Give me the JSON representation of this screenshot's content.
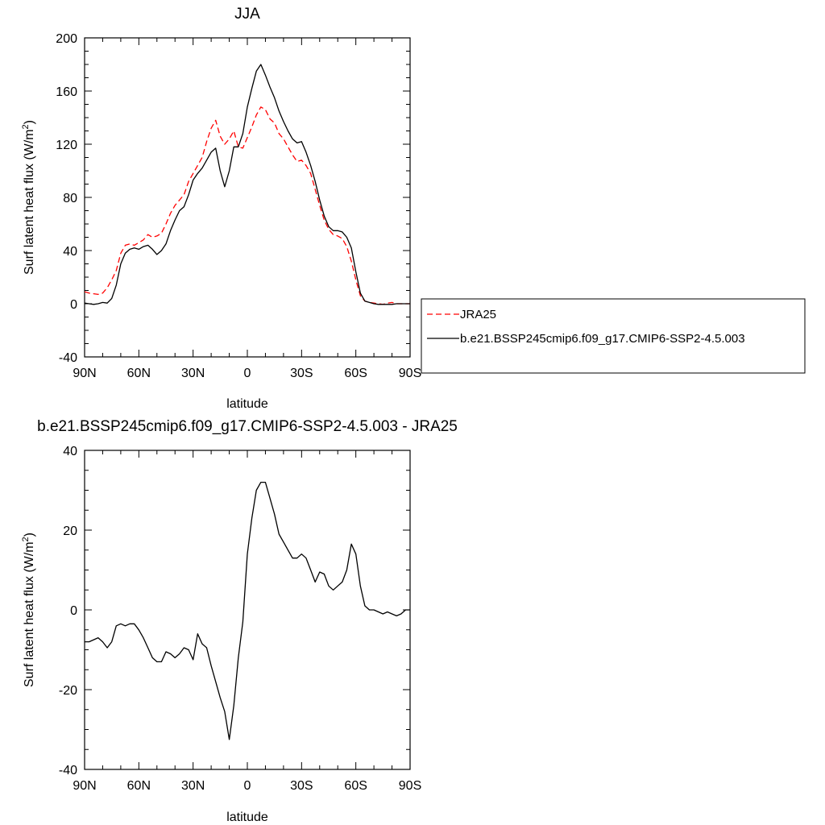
{
  "chart_data": [
    {
      "type": "line",
      "title": "JJA",
      "xlabel": "latitude",
      "ylabel": "Surf latent heat flux (W/m",
      "ylabel_sup": "2",
      "ylabel_close": ")",
      "xlim": [
        90,
        -90
      ],
      "ylim": [
        -40,
        200
      ],
      "xticks": [
        90,
        60,
        30,
        0,
        -30,
        -60,
        -90
      ],
      "xtick_labels": [
        "90N",
        "60N",
        "30N",
        "0",
        "30S",
        "60S",
        "90S"
      ],
      "yticks": [
        -40,
        0,
        40,
        80,
        120,
        160,
        200
      ],
      "ytick_labels": [
        "-40",
        "0",
        "40",
        "80",
        "120",
        "160",
        "200"
      ],
      "grid": false,
      "legend_placement": "right",
      "series": [
        {
          "name": "JRA25",
          "color": "#ff0000",
          "style": "dashed",
          "x": [
            90,
            87.5,
            85,
            82.5,
            80,
            77.5,
            75,
            72.5,
            70,
            67.5,
            65,
            62.5,
            60,
            57.5,
            55,
            52.5,
            50,
            47.5,
            45,
            42.5,
            40,
            37.5,
            35,
            32.5,
            30,
            27.5,
            25,
            22.5,
            20,
            17.5,
            15,
            12.5,
            10,
            7.5,
            5,
            2.5,
            0,
            -2.5,
            -5,
            -7.5,
            -10,
            -12.5,
            -15,
            -17.5,
            -20,
            -22.5,
            -25,
            -27.5,
            -30,
            -32.5,
            -35,
            -37.5,
            -40,
            -42.5,
            -45,
            -47.5,
            -50,
            -52.5,
            -55,
            -57.5,
            -60,
            -62.5,
            -65,
            -67.5,
            -70,
            -72.5,
            -75,
            -77.5,
            -80,
            -82.5,
            -85,
            -87.5,
            -90
          ],
          "y": [
            9,
            8,
            7.5,
            7,
            8,
            12,
            18,
            25,
            38,
            44,
            45,
            44,
            46,
            48,
            52,
            50,
            51,
            53,
            60,
            68,
            74,
            78,
            82,
            92,
            98,
            104,
            110,
            122,
            132,
            138,
            126,
            120,
            124,
            130,
            118,
            117,
            125,
            133,
            142,
            148,
            146,
            139,
            136,
            128,
            124,
            118,
            112,
            107,
            108,
            104,
            98,
            86,
            74,
            63,
            56,
            52,
            51,
            49,
            43,
            32,
            18,
            6,
            2,
            1,
            0.5,
            0,
            -0.5,
            0.5,
            1,
            0,
            0,
            0,
            0
          ]
        },
        {
          "name": "b.e21.BSSP245cmip6.f09_g17.CMIP6-SSP2-4.5.003",
          "color": "#000000",
          "style": "solid",
          "x": [
            90,
            87.5,
            85,
            82.5,
            80,
            77.5,
            75,
            72.5,
            70,
            67.5,
            65,
            62.5,
            60,
            57.5,
            55,
            52.5,
            50,
            47.5,
            45,
            42.5,
            40,
            37.5,
            35,
            32.5,
            30,
            27.5,
            25,
            22.5,
            20,
            17.5,
            15,
            12.5,
            10,
            7.5,
            5,
            2.5,
            0,
            -2.5,
            -5,
            -7.5,
            -10,
            -12.5,
            -15,
            -17.5,
            -20,
            -22.5,
            -25,
            -27.5,
            -30,
            -32.5,
            -35,
            -37.5,
            -40,
            -42.5,
            -45,
            -47.5,
            -50,
            -52.5,
            -55,
            -57.5,
            -60,
            -62.5,
            -65,
            -67.5,
            -70,
            -72.5,
            -75,
            -77.5,
            -80,
            -82.5,
            -85,
            -87.5,
            -90
          ],
          "y": [
            0.5,
            0,
            -0.5,
            0,
            1,
            0.5,
            4,
            14,
            30,
            38,
            41,
            42,
            41,
            43,
            44,
            41,
            37,
            40,
            45,
            55,
            63,
            70,
            73,
            82,
            93,
            98,
            102,
            108,
            114,
            117,
            100,
            88,
            100,
            118,
            118,
            128,
            148,
            162,
            175,
            180,
            172,
            163,
            155,
            145,
            137,
            130,
            124,
            121,
            122,
            114,
            104,
            92,
            78,
            66,
            58,
            55,
            55,
            54,
            50,
            42,
            24,
            8,
            2,
            1,
            0,
            -0.5,
            -0.5,
            -0.5,
            -0.5,
            0,
            0,
            0,
            0
          ]
        }
      ]
    },
    {
      "type": "line",
      "title": "b.e21.BSSP245cmip6.f09_g17.CMIP6-SSP2-4.5.003 - JRA25",
      "xlabel": "latitude",
      "ylabel": "Surf latent heat flux (W/m",
      "ylabel_sup": "2",
      "ylabel_close": ")",
      "xlim": [
        90,
        -90
      ],
      "ylim": [
        -40,
        40
      ],
      "xticks": [
        90,
        60,
        30,
        0,
        -30,
        -60,
        -90
      ],
      "xtick_labels": [
        "90N",
        "60N",
        "30N",
        "0",
        "30S",
        "60S",
        "90S"
      ],
      "yticks": [
        -40,
        -20,
        0,
        20,
        40
      ],
      "ytick_labels": [
        "-40",
        "-20",
        "0",
        "20",
        "40"
      ],
      "grid": false,
      "series": [
        {
          "color": "#000000",
          "style": "solid",
          "x": [
            90,
            87.5,
            85,
            82.5,
            80,
            77.5,
            75,
            72.5,
            70,
            67.5,
            65,
            62.5,
            60,
            57.5,
            55,
            52.5,
            50,
            47.5,
            45,
            42.5,
            40,
            37.5,
            35,
            32.5,
            30,
            27.5,
            25,
            22.5,
            20,
            17.5,
            15,
            12.5,
            10,
            7.5,
            5,
            2.5,
            0,
            -2.5,
            -5,
            -7.5,
            -10,
            -12.5,
            -15,
            -17.5,
            -20,
            -22.5,
            -25,
            -27.5,
            -30,
            -32.5,
            -35,
            -37.5,
            -40,
            -42.5,
            -45,
            -47.5,
            -50,
            -52.5,
            -55,
            -57.5,
            -60,
            -62.5,
            -65,
            -67.5,
            -70,
            -72.5,
            -75,
            -77.5,
            -80,
            -82.5,
            -85,
            -87.5,
            -90
          ],
          "y": [
            -8,
            -8,
            -7.5,
            -7,
            -8,
            -9.5,
            -8,
            -4,
            -3.5,
            -4,
            -3.5,
            -3.5,
            -5,
            -7,
            -9.5,
            -12,
            -13,
            -13,
            -10.5,
            -11,
            -12,
            -11,
            -9.5,
            -10,
            -12.5,
            -6,
            -8.5,
            -9.5,
            -14,
            -18,
            -22,
            -25.5,
            -32.5,
            -24,
            -12,
            -3,
            14,
            23,
            30,
            32,
            32,
            28,
            24,
            19,
            17,
            15,
            13,
            13,
            14,
            13,
            10,
            7,
            9.5,
            9,
            6,
            5,
            6,
            7,
            10,
            16.5,
            14,
            6,
            1,
            0,
            0,
            -0.5,
            -1,
            -0.5,
            -1,
            -1.5,
            -1,
            0,
            0
          ]
        }
      ]
    }
  ]
}
